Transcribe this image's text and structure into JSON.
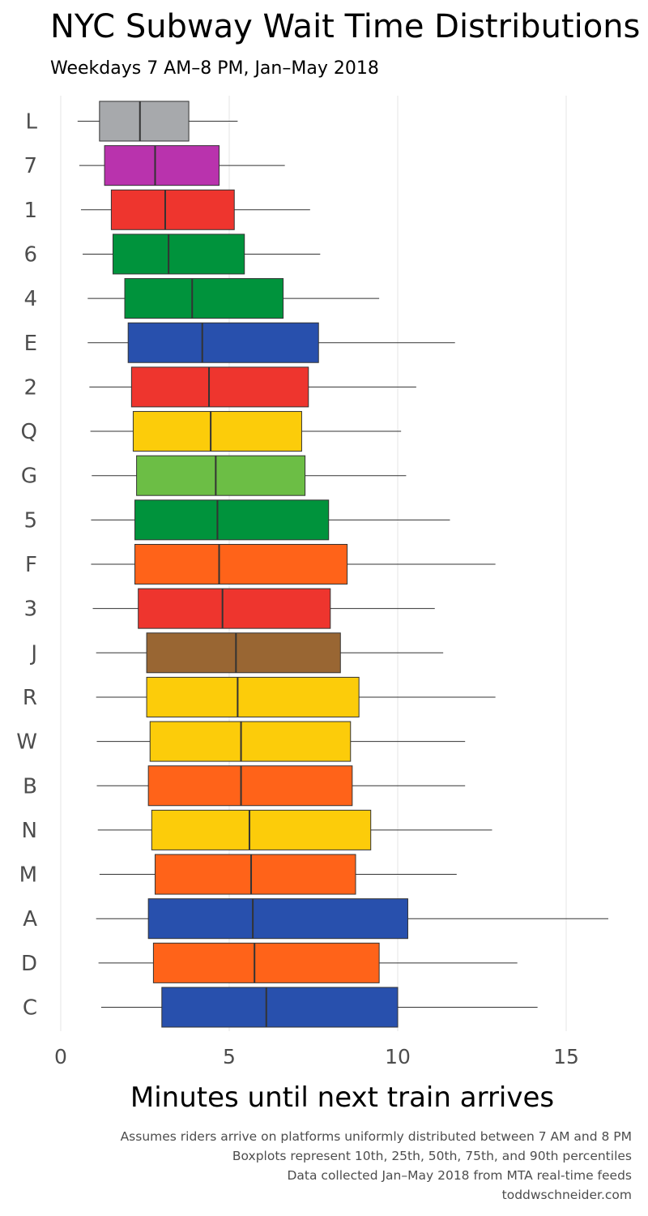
{
  "chart_data": {
    "type": "boxplot",
    "orientation": "horizontal",
    "title": "NYC Subway Wait Time Distributions",
    "subtitle": "Weekdays 7 AM–8 PM, Jan–May 2018",
    "xlabel": "Minutes until next train arrives",
    "xlim": [
      0,
      16.5
    ],
    "xticks": [
      0,
      5,
      10,
      15
    ],
    "grid": "vertical",
    "series": [
      {
        "name": "L",
        "color": "#A7A9AC",
        "p10": 0.5,
        "q1": 1.15,
        "median": 2.35,
        "q3": 3.8,
        "p90": 5.25
      },
      {
        "name": "7",
        "color": "#B933AD",
        "p10": 0.55,
        "q1": 1.3,
        "median": 2.8,
        "q3": 4.7,
        "p90": 6.65
      },
      {
        "name": "1",
        "color": "#EE352E",
        "p10": 0.6,
        "q1": 1.5,
        "median": 3.1,
        "q3": 5.15,
        "p90": 7.4
      },
      {
        "name": "6",
        "color": "#00933C",
        "p10": 0.65,
        "q1": 1.55,
        "median": 3.2,
        "q3": 5.45,
        "p90": 7.7
      },
      {
        "name": "4",
        "color": "#00933C",
        "p10": 0.8,
        "q1": 1.9,
        "median": 3.9,
        "q3": 6.6,
        "p90": 9.45
      },
      {
        "name": "E",
        "color": "#2850AD",
        "p10": 0.8,
        "q1": 2.0,
        "median": 4.2,
        "q3": 7.65,
        "p90": 11.7
      },
      {
        "name": "2",
        "color": "#EE352E",
        "p10": 0.85,
        "q1": 2.1,
        "median": 4.4,
        "q3": 7.35,
        "p90": 10.55
      },
      {
        "name": "Q",
        "color": "#FCCC0A",
        "p10": 0.88,
        "q1": 2.15,
        "median": 4.45,
        "q3": 7.15,
        "p90": 10.1
      },
      {
        "name": "G",
        "color": "#6CBE45",
        "p10": 0.92,
        "q1": 2.25,
        "median": 4.6,
        "q3": 7.25,
        "p90": 10.25
      },
      {
        "name": "5",
        "color": "#00933C",
        "p10": 0.9,
        "q1": 2.2,
        "median": 4.65,
        "q3": 7.95,
        "p90": 11.55
      },
      {
        "name": "F",
        "color": "#FF6319",
        "p10": 0.9,
        "q1": 2.2,
        "median": 4.7,
        "q3": 8.5,
        "p90": 12.9
      },
      {
        "name": "3",
        "color": "#EE352E",
        "p10": 0.95,
        "q1": 2.3,
        "median": 4.8,
        "q3": 8.0,
        "p90": 11.1
      },
      {
        "name": "J",
        "color": "#996633",
        "p10": 1.05,
        "q1": 2.55,
        "median": 5.2,
        "q3": 8.3,
        "p90": 11.35
      },
      {
        "name": "R",
        "color": "#FCCC0A",
        "p10": 1.05,
        "q1": 2.55,
        "median": 5.25,
        "q3": 8.85,
        "p90": 12.9
      },
      {
        "name": "W",
        "color": "#FCCC0A",
        "p10": 1.07,
        "q1": 2.65,
        "median": 5.35,
        "q3": 8.6,
        "p90": 12.0
      },
      {
        "name": "B",
        "color": "#FF6319",
        "p10": 1.07,
        "q1": 2.6,
        "median": 5.35,
        "q3": 8.65,
        "p90": 12.0
      },
      {
        "name": "N",
        "color": "#FCCC0A",
        "p10": 1.1,
        "q1": 2.7,
        "median": 5.6,
        "q3": 9.2,
        "p90": 12.8
      },
      {
        "name": "M",
        "color": "#FF6319",
        "p10": 1.15,
        "q1": 2.8,
        "median": 5.65,
        "q3": 8.75,
        "p90": 11.75
      },
      {
        "name": "A",
        "color": "#2850AD",
        "p10": 1.05,
        "q1": 2.6,
        "median": 5.7,
        "q3": 10.3,
        "p90": 16.25
      },
      {
        "name": "D",
        "color": "#FF6319",
        "p10": 1.12,
        "q1": 2.75,
        "median": 5.75,
        "q3": 9.45,
        "p90": 13.55
      },
      {
        "name": "C",
        "color": "#2850AD",
        "p10": 1.2,
        "q1": 3.0,
        "median": 6.1,
        "q3": 10.0,
        "p90": 14.15
      }
    ]
  },
  "captions": [
    "Assumes riders arrive on platforms uniformly distributed between 7 AM and 8 PM",
    "Boxplots represent 10th, 25th, 50th, 75th, and 90th percentiles",
    "Data collected Jan–May 2018 from MTA real-time feeds",
    "toddwschneider.com"
  ]
}
